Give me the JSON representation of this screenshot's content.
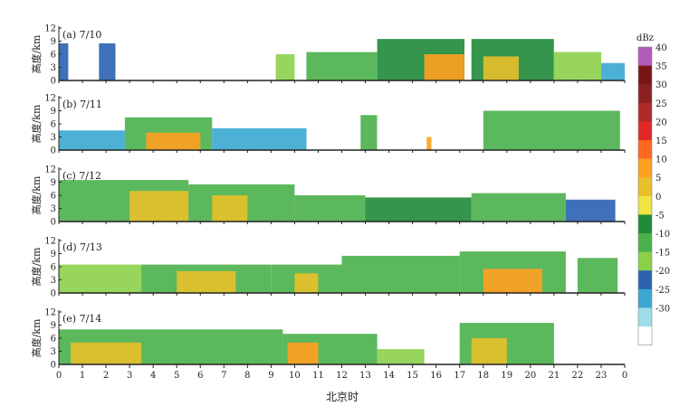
{
  "chart_data": {
    "type": "heatmap",
    "panels": [
      {
        "label": "(a)",
        "date": "7/10"
      },
      {
        "label": "(b)",
        "date": "7/11"
      },
      {
        "label": "(c)",
        "date": "7/12"
      },
      {
        "label": "(d)",
        "date": "7/13"
      },
      {
        "label": "(e)",
        "date": "7/14"
      }
    ],
    "xlabel": "北京时",
    "ylabel": "高度/km",
    "x_ticks": [
      "0",
      "1",
      "2",
      "3",
      "4",
      "5",
      "6",
      "7",
      "8",
      "9",
      "10",
      "11",
      "12",
      "13",
      "14",
      "15",
      "16",
      "17",
      "18",
      "19",
      "20",
      "21",
      "22",
      "23",
      "0"
    ],
    "y_ticks": [
      "0",
      "3",
      "6",
      "9",
      "12"
    ],
    "xlim": [
      0,
      24
    ],
    "ylim": [
      0,
      12
    ],
    "colorbar": {
      "title": "dBz",
      "ticks": [
        "40",
        "35",
        "30",
        "25",
        "20",
        "15",
        "10",
        "5",
        "0",
        "-5",
        "-10",
        "-15",
        "-20",
        "-25",
        "-30"
      ],
      "colors": [
        "#b25ab7",
        "#7a1515",
        "#8a2020",
        "#b02828",
        "#e02828",
        "#ff6820",
        "#ffa020",
        "#e8c02a",
        "#f0e442",
        "#1f8a3a",
        "#4ab04a",
        "#8cd04a",
        "#2a62b0",
        "#3aa8d0",
        "#9edce8",
        "#ffffff"
      ]
    },
    "series": [
      {
        "panel": "(a)",
        "segments": [
          {
            "x": [
              0.0,
              0.4
            ],
            "top": 8.5,
            "level": -20
          },
          {
            "x": [
              1.7,
              2.4
            ],
            "top": 8.5,
            "level": -20
          },
          {
            "x": [
              9.2,
              10.0
            ],
            "top": 6.0,
            "level": -15
          },
          {
            "x": [
              10.5,
              13.5
            ],
            "top": 6.5,
            "level": -10
          },
          {
            "x": [
              13.5,
              17.2
            ],
            "top": 9.5,
            "level": -5
          },
          {
            "x": [
              15.5,
              17.2
            ],
            "top": 6.0,
            "level": 10
          },
          {
            "x": [
              17.5,
              21.0
            ],
            "top": 9.5,
            "level": -5
          },
          {
            "x": [
              18.0,
              19.5
            ],
            "top": 5.5,
            "level": 5
          },
          {
            "x": [
              21.0,
              23.0
            ],
            "top": 6.5,
            "level": -15
          },
          {
            "x": [
              23.0,
              24.0
            ],
            "top": 4.0,
            "level": -25
          }
        ]
      },
      {
        "panel": "(b)",
        "segments": [
          {
            "x": [
              0.0,
              2.8
            ],
            "top": 4.5,
            "level": -25
          },
          {
            "x": [
              2.8,
              6.5
            ],
            "top": 7.5,
            "level": -10
          },
          {
            "x": [
              3.7,
              6.0
            ],
            "top": 4.0,
            "level": 10
          },
          {
            "x": [
              6.5,
              10.5
            ],
            "top": 5.0,
            "level": -25
          },
          {
            "x": [
              12.8,
              13.5
            ],
            "top": 8.0,
            "level": -10
          },
          {
            "x": [
              15.6,
              15.8
            ],
            "top": 3.0,
            "level": 10
          },
          {
            "x": [
              18.0,
              23.8
            ],
            "top": 9.0,
            "level": -10
          }
        ]
      },
      {
        "panel": "(c)",
        "segments": [
          {
            "x": [
              0.0,
              5.5
            ],
            "top": 9.5,
            "level": -10
          },
          {
            "x": [
              3.0,
              5.5
            ],
            "top": 7.0,
            "level": 5
          },
          {
            "x": [
              5.5,
              10.0
            ],
            "top": 8.5,
            "level": -10
          },
          {
            "x": [
              6.5,
              8.0
            ],
            "top": 6.0,
            "level": 5
          },
          {
            "x": [
              10.0,
              13.0
            ],
            "top": 6.0,
            "level": -10
          },
          {
            "x": [
              13.0,
              17.5
            ],
            "top": 5.5,
            "level": -5
          },
          {
            "x": [
              17.5,
              21.5
            ],
            "top": 6.5,
            "level": -10
          },
          {
            "x": [
              21.5,
              23.6
            ],
            "top": 5.0,
            "level": -20
          }
        ]
      },
      {
        "panel": "(d)",
        "segments": [
          {
            "x": [
              0.0,
              3.5
            ],
            "top": 6.5,
            "level": -15
          },
          {
            "x": [
              3.5,
              9.0
            ],
            "top": 6.5,
            "level": -10
          },
          {
            "x": [
              5.0,
              7.5
            ],
            "top": 5.0,
            "level": 5
          },
          {
            "x": [
              9.0,
              12.0
            ],
            "top": 6.5,
            "level": -10
          },
          {
            "x": [
              10.0,
              11.0
            ],
            "top": 4.5,
            "level": 5
          },
          {
            "x": [
              12.0,
              17.0
            ],
            "top": 8.5,
            "level": -10
          },
          {
            "x": [
              17.0,
              21.5
            ],
            "top": 9.5,
            "level": -10
          },
          {
            "x": [
              18.0,
              20.5
            ],
            "top": 5.5,
            "level": 10
          },
          {
            "x": [
              22.0,
              23.7
            ],
            "top": 8.0,
            "level": -10
          }
        ]
      },
      {
        "panel": "(e)",
        "segments": [
          {
            "x": [
              0.0,
              9.5
            ],
            "top": 8.0,
            "level": -10
          },
          {
            "x": [
              0.5,
              3.5
            ],
            "top": 5.0,
            "level": 5
          },
          {
            "x": [
              9.5,
              13.5
            ],
            "top": 7.0,
            "level": -10
          },
          {
            "x": [
              9.7,
              11.0
            ],
            "top": 5.0,
            "level": 10
          },
          {
            "x": [
              13.5,
              15.5
            ],
            "top": 3.5,
            "level": -15
          },
          {
            "x": [
              17.0,
              21.0
            ],
            "top": 9.5,
            "level": -10
          },
          {
            "x": [
              17.5,
              19.0
            ],
            "top": 6.0,
            "level": 5
          }
        ]
      }
    ]
  }
}
